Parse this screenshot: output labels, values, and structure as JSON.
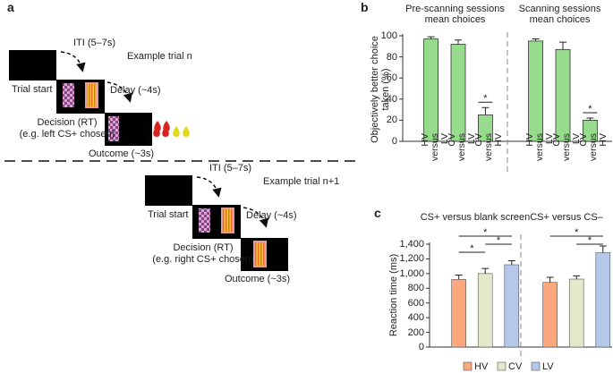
{
  "figure": {
    "panel_a": {
      "label": "a",
      "trials": [
        {
          "iti": "ITI (5–7s)",
          "example": "Example trial n",
          "start": "Trial start",
          "delay": "Delay (~4s)",
          "decision": "Decision (RT)",
          "choice": "(e.g. left CS+ chosen)",
          "outcome": "Outcome (~3s)"
        },
        {
          "iti": "ITI (5–7s)",
          "example": "Example trial n+1",
          "start": "Trial start",
          "delay": "Delay (~4s)",
          "decision": "Decision (RT)",
          "choice": "(e.g. right CS+ chosen)",
          "outcome": "Outcome (~3s)"
        }
      ]
    }
  },
  "chart_data": [
    {
      "type": "bar",
      "label": "b",
      "group_titles": [
        "Pre-scanning sessions mean choices",
        "Scanning sessions mean choices"
      ],
      "categories": [
        "HV versus LV",
        "CV versus LV",
        "CV versus HV",
        "HV versus LV",
        "CV versus LV",
        "CV versus HV"
      ],
      "values": [
        97,
        92,
        25,
        95,
        87,
        20
      ],
      "errors": [
        2,
        4,
        7,
        2,
        7,
        2
      ],
      "significance": [
        null,
        null,
        "*",
        null,
        null,
        "*"
      ],
      "color": "#97db8d",
      "ylabel": "Objectively better choice taken (%)",
      "ylim": [
        0,
        100
      ],
      "yticks": [
        0,
        20,
        40,
        60,
        80,
        100
      ]
    },
    {
      "type": "grouped_bar",
      "label": "c",
      "categories": [
        "CS+ versus blank screen",
        "CS+ versus CS–"
      ],
      "series": [
        {
          "name": "HV",
          "color": "#fca77e",
          "values": [
            920,
            880
          ],
          "errors": [
            60,
            70
          ]
        },
        {
          "name": "CV",
          "color": "#e3e8c9",
          "values": [
            1000,
            925
          ],
          "errors": [
            70,
            45
          ]
        },
        {
          "name": "LV",
          "color": "#b6c8ea",
          "values": [
            1120,
            1285
          ],
          "errors": [
            55,
            90
          ]
        }
      ],
      "comparisons": [
        {
          "category": "CS+ versus blank screen",
          "pair": [
            "HV",
            "LV"
          ],
          "label": "*"
        },
        {
          "category": "CS+ versus blank screen",
          "pair": [
            "CV",
            "LV"
          ],
          "label": "*"
        },
        {
          "category": "CS+ versus blank screen",
          "pair": [
            "HV",
            "CV"
          ],
          "label": "*"
        },
        {
          "category": "CS+ versus CS–",
          "pair": [
            "HV",
            "LV"
          ],
          "label": "*"
        },
        {
          "category": "CS+ versus CS–",
          "pair": [
            "CV",
            "LV"
          ],
          "label": "*"
        }
      ],
      "ylabel": "Reaction time (ms)",
      "ylim": [
        0,
        1400
      ],
      "yticks": [
        0,
        200,
        400,
        600,
        800,
        {
          "value": 1000,
          "label": "1,000"
        },
        {
          "value": 1200,
          "label": "1,200"
        },
        {
          "value": 1400,
          "label": "1,400"
        }
      ],
      "legend": "bottom"
    }
  ]
}
